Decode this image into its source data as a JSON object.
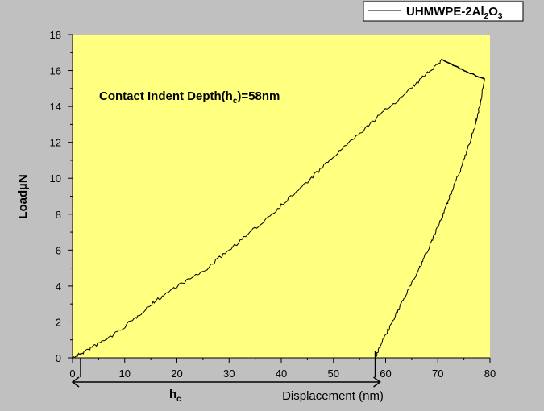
{
  "chart_data": {
    "type": "line",
    "ylabel": "LoadµN",
    "xlabel": "Displacement (nm)",
    "xlim": [
      0,
      80
    ],
    "ylim": [
      0,
      18
    ],
    "xticks": [
      0,
      10,
      20,
      30,
      40,
      50,
      60,
      70,
      80
    ],
    "yticks": [
      0,
      2,
      4,
      6,
      8,
      10,
      12,
      14,
      16,
      18
    ],
    "plot_background": "#ffff80",
    "page_background": "#c0c0c0",
    "legend": {
      "position": "top-right"
    },
    "annotation": {
      "prefix": "Contact Indent Depth(h",
      "subscript": "c",
      "suffix": ")=58nm"
    },
    "hc_marker": {
      "label": "h",
      "subscript": "c",
      "from_x": 0,
      "to_x": 58
    },
    "series": [
      {
        "name": "UHMWPE-2Al2O3",
        "name_parts": [
          "UHMWPE-2Al",
          "2",
          "O",
          "3"
        ],
        "color": "#000000",
        "loading": {
          "x": [
            0,
            2,
            5,
            8,
            12,
            16,
            20,
            25,
            30,
            35,
            40,
            45,
            50,
            55,
            60,
            65,
            68,
            71
          ],
          "y": [
            0,
            0.3,
            0.8,
            1.3,
            2.2,
            3.2,
            4.0,
            4.8,
            6.0,
            7.2,
            8.5,
            9.8,
            11.2,
            12.5,
            13.8,
            15.0,
            15.9,
            16.6
          ]
        },
        "hold": {
          "x": [
            71,
            75,
            79
          ],
          "y": [
            16.6,
            16.0,
            15.5
          ]
        },
        "unloading": {
          "x": [
            79,
            78,
            77,
            75,
            73,
            71,
            69,
            67,
            65,
            63,
            61,
            59,
            58
          ],
          "y": [
            15.5,
            14.0,
            12.8,
            11.0,
            9.5,
            8.0,
            6.6,
            5.3,
            4.2,
            3.0,
            1.8,
            0.7,
            0
          ]
        }
      }
    ]
  }
}
